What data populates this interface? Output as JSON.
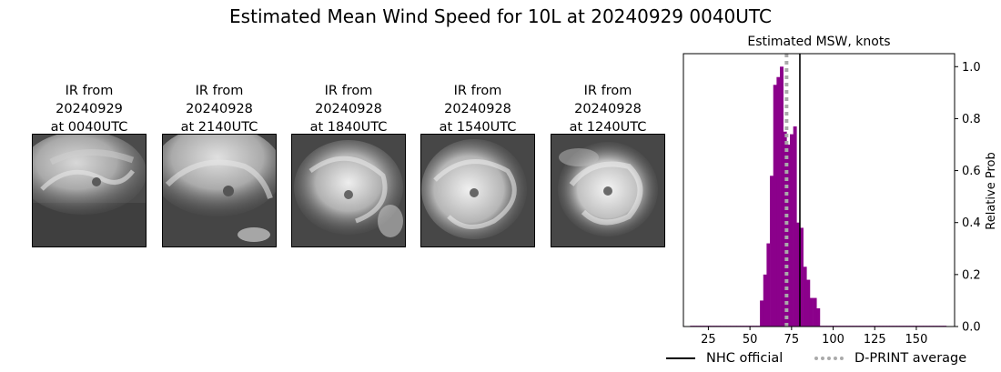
{
  "figure": {
    "title": "Estimated Mean Wind Speed for 10L at 20240929 0040UTC"
  },
  "ir_panels": [
    {
      "line1": "IR from",
      "date": "20240929",
      "time": "at 0040UTC"
    },
    {
      "line1": "IR from",
      "date": "20240928",
      "time": "at 2140UTC"
    },
    {
      "line1": "IR from",
      "date": "20240928",
      "time": "at 1840UTC"
    },
    {
      "line1": "IR from",
      "date": "20240928",
      "time": "at 1540UTC"
    },
    {
      "line1": "IR from",
      "date": "20240928",
      "time": "at 1240UTC"
    }
  ],
  "colors": {
    "bars": "#8b008b",
    "nhc_line": "#000000",
    "dprint_line": "#aaaaaa"
  },
  "chart_data": {
    "type": "bar",
    "title": "Estimated MSW, knots",
    "xlabel": "",
    "ylabel": "Relative Prob",
    "xlim": [
      10,
      173
    ],
    "ylim": [
      0,
      1.05
    ],
    "x_ticks": [
      25,
      50,
      75,
      100,
      125,
      150
    ],
    "y_ticks": [
      0.0,
      0.2,
      0.4,
      0.6,
      0.8,
      1.0
    ],
    "y_tick_labels": [
      "0.0",
      "0.2",
      "0.4",
      "0.6",
      "0.8",
      "1.0"
    ],
    "y_axis_side": "right",
    "bin_width": 2,
    "bins": [
      {
        "x": 15,
        "y": 0.003
      },
      {
        "x": 17,
        "y": 0.003
      },
      {
        "x": 19,
        "y": 0.003
      },
      {
        "x": 21,
        "y": 0.003
      },
      {
        "x": 23,
        "y": 0.003
      },
      {
        "x": 25,
        "y": 0.003
      },
      {
        "x": 27,
        "y": 0.003
      },
      {
        "x": 29,
        "y": 0.003
      },
      {
        "x": 31,
        "y": 0.003
      },
      {
        "x": 33,
        "y": 0.003
      },
      {
        "x": 35,
        "y": 0.003
      },
      {
        "x": 37,
        "y": 0.003
      },
      {
        "x": 39,
        "y": 0.003
      },
      {
        "x": 41,
        "y": 0.003
      },
      {
        "x": 43,
        "y": 0.003
      },
      {
        "x": 45,
        "y": 0.003
      },
      {
        "x": 47,
        "y": 0.003
      },
      {
        "x": 49,
        "y": 0.003
      },
      {
        "x": 51,
        "y": 0.003
      },
      {
        "x": 53,
        "y": 0.003
      },
      {
        "x": 55,
        "y": 0.003
      },
      {
        "x": 57,
        "y": 0.1
      },
      {
        "x": 59,
        "y": 0.2
      },
      {
        "x": 61,
        "y": 0.32
      },
      {
        "x": 63,
        "y": 0.58
      },
      {
        "x": 65,
        "y": 0.93
      },
      {
        "x": 67,
        "y": 0.96
      },
      {
        "x": 69,
        "y": 1.0
      },
      {
        "x": 71,
        "y": 0.75
      },
      {
        "x": 73,
        "y": 0.7
      },
      {
        "x": 75,
        "y": 0.74
      },
      {
        "x": 77,
        "y": 0.77
      },
      {
        "x": 79,
        "y": 0.4
      },
      {
        "x": 81,
        "y": 0.38
      },
      {
        "x": 83,
        "y": 0.23
      },
      {
        "x": 85,
        "y": 0.18
      },
      {
        "x": 87,
        "y": 0.11
      },
      {
        "x": 89,
        "y": 0.11
      },
      {
        "x": 91,
        "y": 0.07
      },
      {
        "x": 93,
        "y": 0.003
      },
      {
        "x": 95,
        "y": 0.003
      },
      {
        "x": 97,
        "y": 0.003
      },
      {
        "x": 99,
        "y": 0.003
      },
      {
        "x": 101,
        "y": 0.003
      },
      {
        "x": 103,
        "y": 0.003
      },
      {
        "x": 105,
        "y": 0.003
      },
      {
        "x": 107,
        "y": 0.003
      },
      {
        "x": 109,
        "y": 0.003
      },
      {
        "x": 111,
        "y": 0.003
      },
      {
        "x": 113,
        "y": 0.003
      },
      {
        "x": 115,
        "y": 0.003
      },
      {
        "x": 117,
        "y": 0.003
      },
      {
        "x": 119,
        "y": 0.003
      },
      {
        "x": 121,
        "y": 0.003
      },
      {
        "x": 123,
        "y": 0.003
      },
      {
        "x": 125,
        "y": 0.003
      },
      {
        "x": 127,
        "y": 0.003
      },
      {
        "x": 129,
        "y": 0.003
      },
      {
        "x": 131,
        "y": 0.003
      },
      {
        "x": 133,
        "y": 0.003
      },
      {
        "x": 135,
        "y": 0.003
      },
      {
        "x": 137,
        "y": 0.003
      },
      {
        "x": 139,
        "y": 0.003
      },
      {
        "x": 141,
        "y": 0.003
      },
      {
        "x": 143,
        "y": 0.003
      },
      {
        "x": 145,
        "y": 0.003
      },
      {
        "x": 147,
        "y": 0.003
      },
      {
        "x": 149,
        "y": 0.003
      },
      {
        "x": 151,
        "y": 0.003
      },
      {
        "x": 153,
        "y": 0.003
      },
      {
        "x": 155,
        "y": 0.003
      },
      {
        "x": 157,
        "y": 0.003
      },
      {
        "x": 159,
        "y": 0.003
      },
      {
        "x": 161,
        "y": 0.003
      },
      {
        "x": 163,
        "y": 0.003
      },
      {
        "x": 165,
        "y": 0.003
      },
      {
        "x": 167,
        "y": 0.003
      }
    ],
    "vlines": [
      {
        "name": "NHC official",
        "x": 80,
        "style": "solid"
      },
      {
        "name": "D-PRINT average",
        "x": 72,
        "style": "dotted"
      }
    ],
    "legend": {
      "placement": "bottom",
      "entries": [
        "NHC official",
        "D-PRINT average"
      ]
    },
    "grid": false
  }
}
